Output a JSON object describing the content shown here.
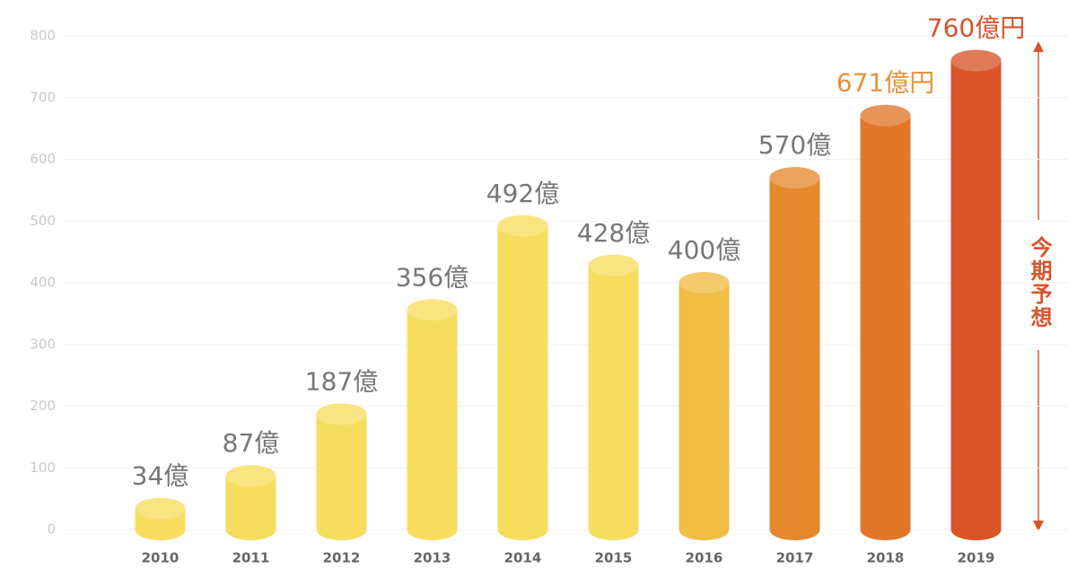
{
  "chart_data": {
    "type": "bar",
    "categories": [
      "2010",
      "2011",
      "2012",
      "2013",
      "2014",
      "2015",
      "2016",
      "2017",
      "2018",
      "2019"
    ],
    "values": [
      34,
      87,
      187,
      356,
      492,
      428,
      400,
      570,
      671,
      760
    ],
    "value_labels": [
      "34億",
      "87億",
      "187億",
      "356億",
      "492億",
      "428億",
      "400億",
      "570億",
      "671億円",
      "760億円"
    ],
    "colors": [
      "#f7dd5e",
      "#f7dd5e",
      "#f7dd5e",
      "#f7dd5e",
      "#f7dd5e",
      "#f7dd5e",
      "#f0bd45",
      "#e6882c",
      "#e2772a",
      "#d8542a"
    ],
    "label_colors": [
      "#777777",
      "#777777",
      "#777777",
      "#777777",
      "#777777",
      "#777777",
      "#777777",
      "#777777",
      "#e8913a",
      "#d8542a"
    ],
    "ylim": [
      0,
      800
    ],
    "yticks": [
      0,
      100,
      200,
      300,
      400,
      500,
      600,
      700,
      800
    ],
    "grid": true,
    "annotation": "今期予想"
  }
}
